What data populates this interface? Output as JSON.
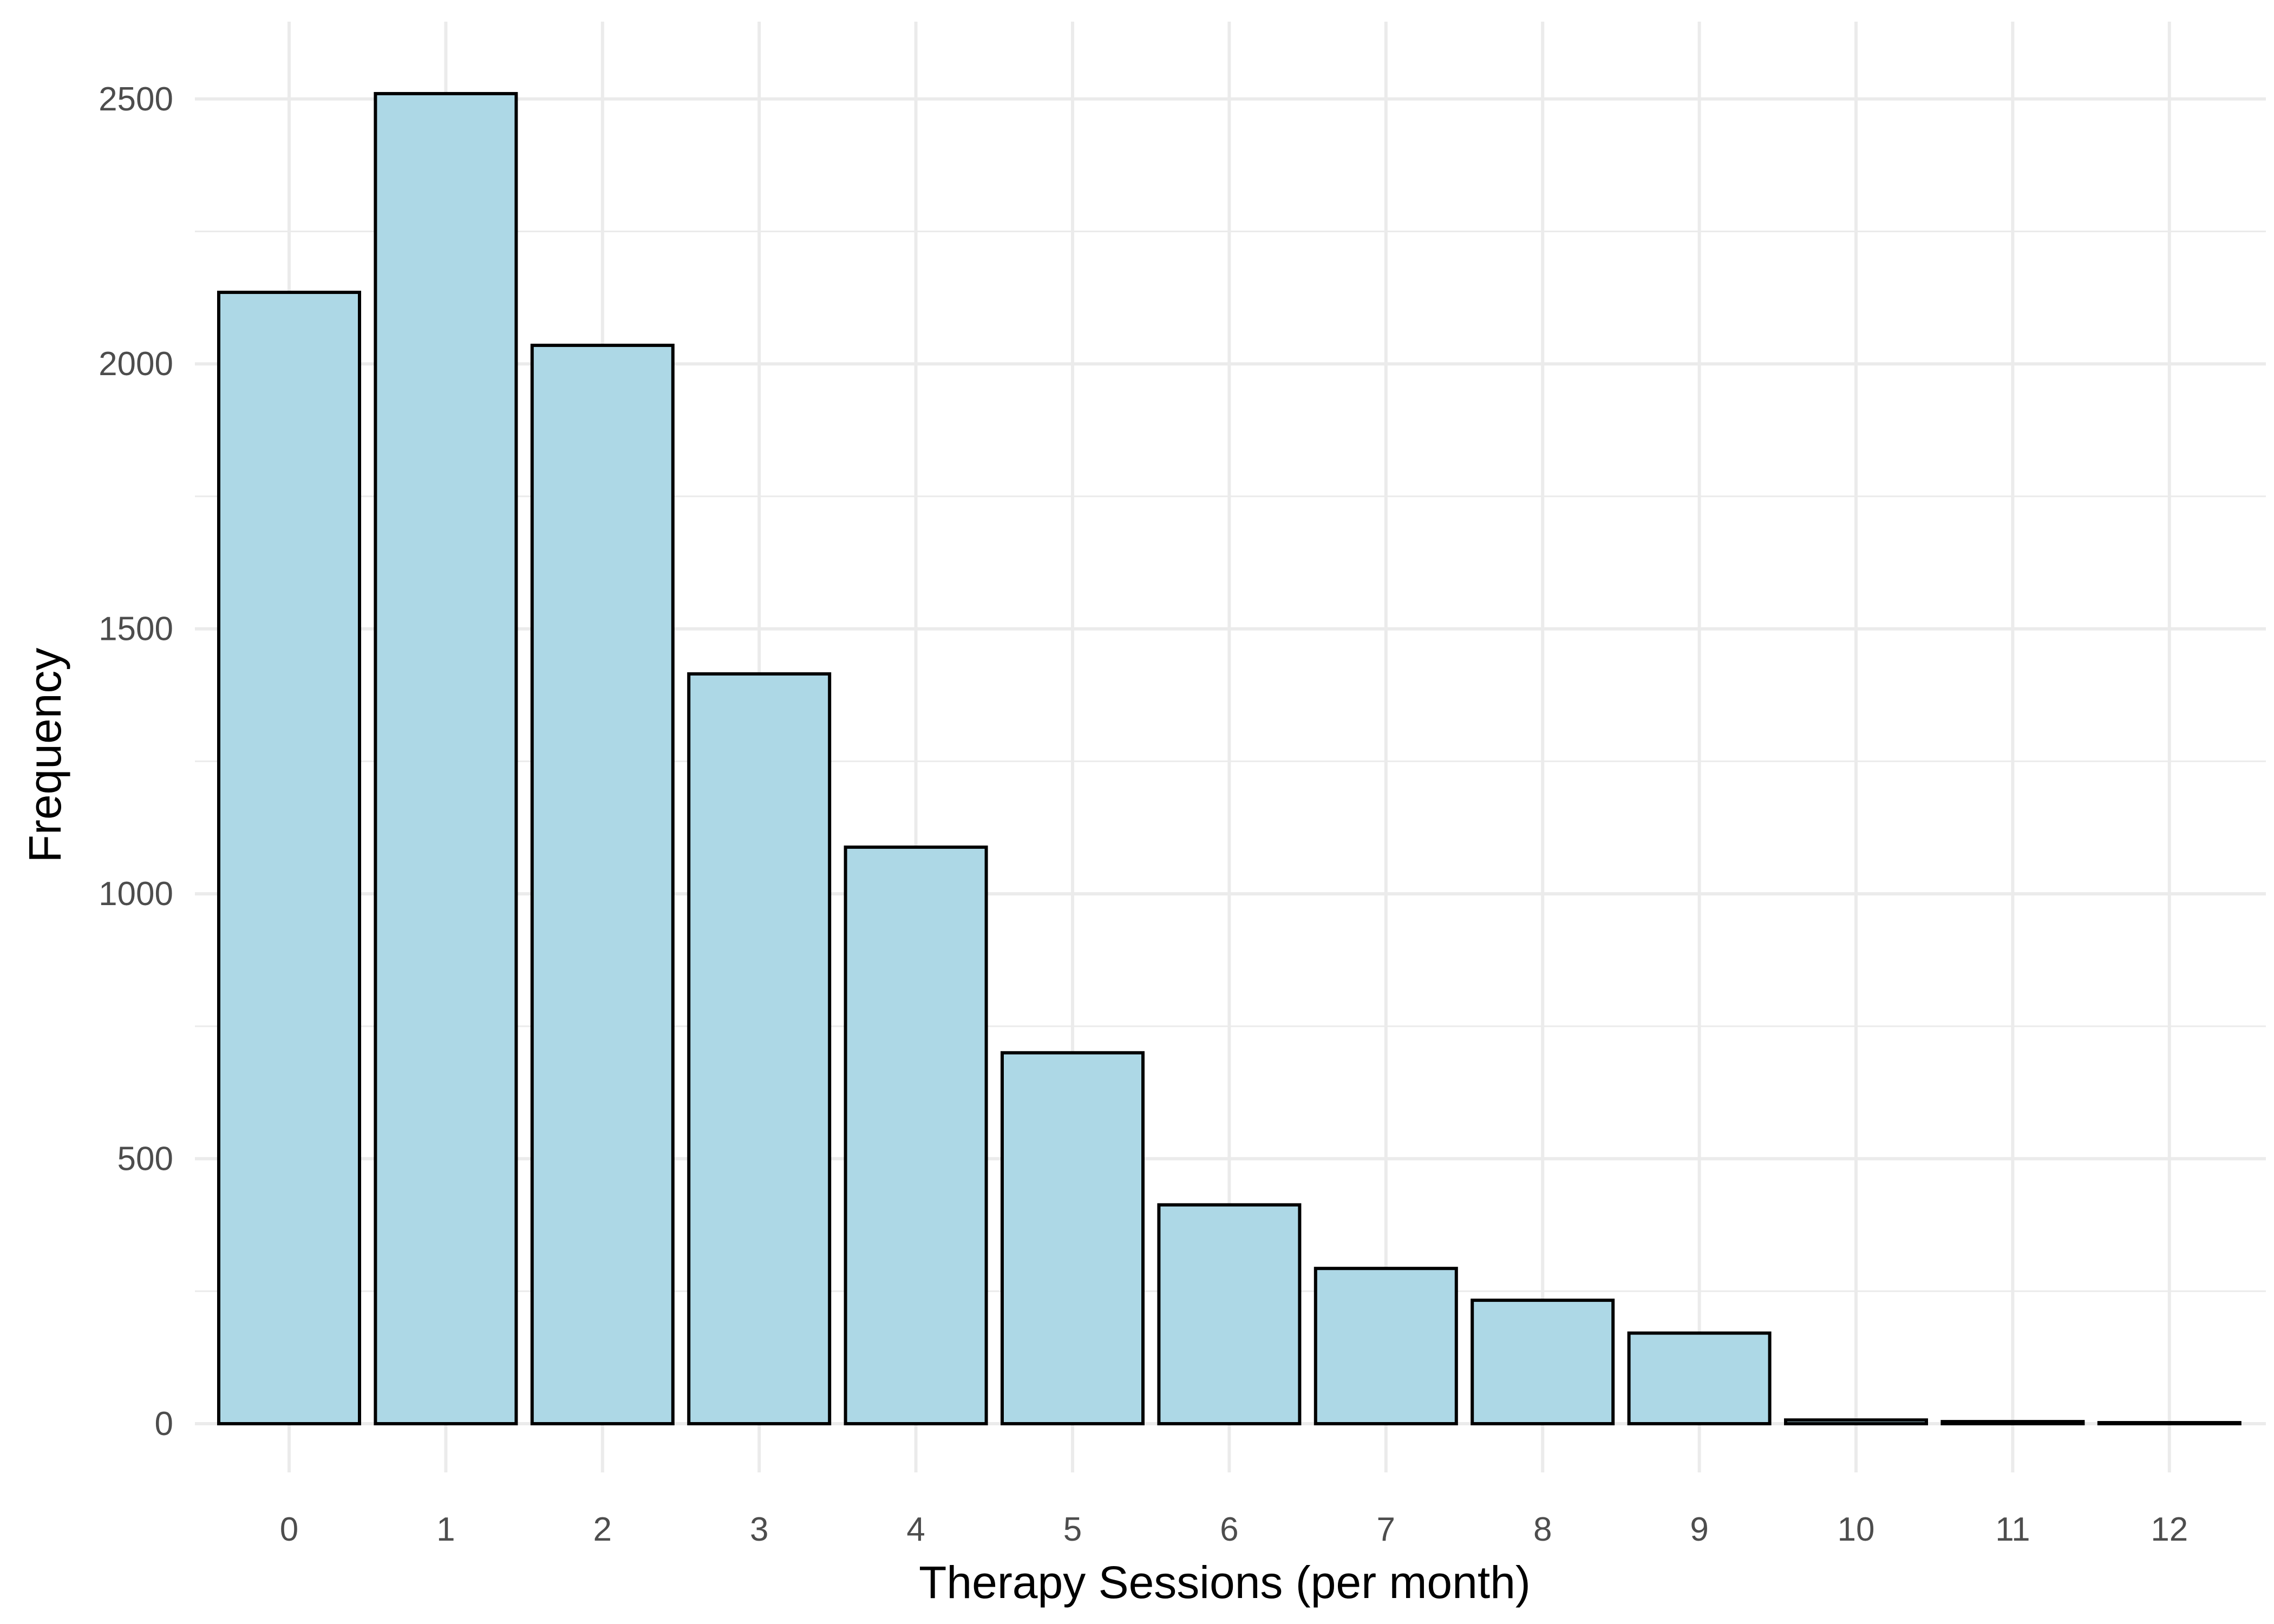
{
  "chart_data": {
    "type": "bar",
    "xlabel": "Therapy Sessions (per month)",
    "ylabel": "Frequency",
    "categories": [
      "0",
      "1",
      "2",
      "3",
      "4",
      "5",
      "6",
      "7",
      "8",
      "9",
      "10",
      "11",
      "12"
    ],
    "values": [
      2135,
      2510,
      2035,
      1415,
      1088,
      700,
      413,
      293,
      233,
      171,
      7,
      4,
      2
    ],
    "ylim": [
      0,
      2640
    ],
    "yticks": [
      "0",
      "500",
      "1000",
      "1500",
      "2000",
      "2500"
    ],
    "grid": true,
    "legend": "none",
    "bar_fill": "#add8e6",
    "bar_stroke": "#000000",
    "grid_color": "#ebebeb"
  }
}
